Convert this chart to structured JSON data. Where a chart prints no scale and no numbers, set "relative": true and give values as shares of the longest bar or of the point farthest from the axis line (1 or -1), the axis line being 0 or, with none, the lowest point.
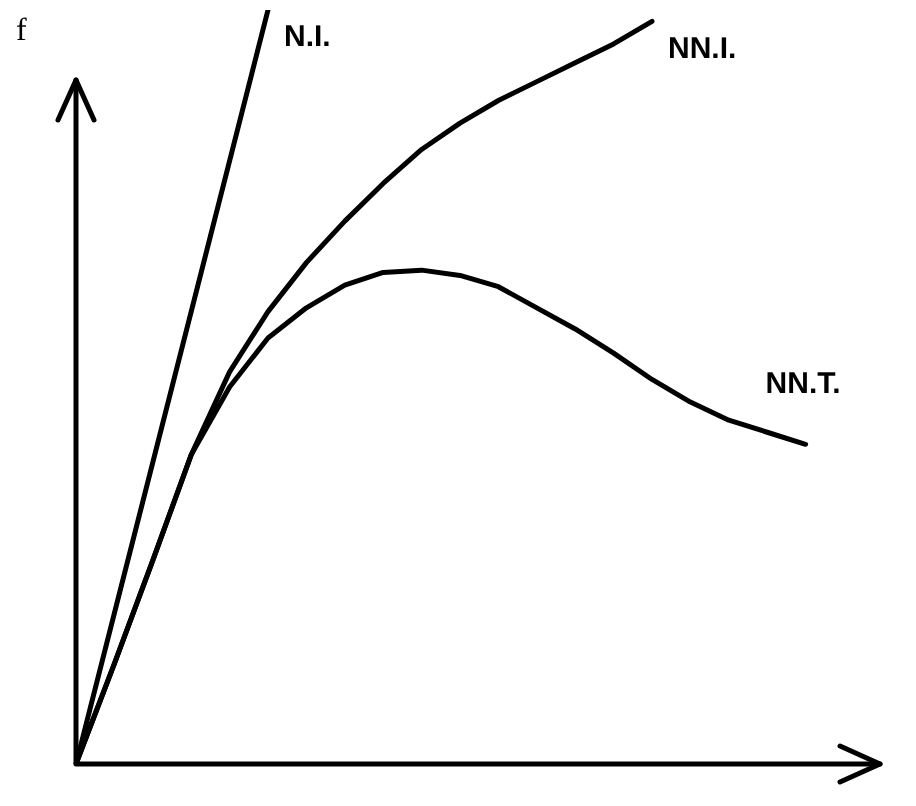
{
  "chart_data": {
    "type": "line",
    "ylabel": "f",
    "relative": true,
    "legend": false,
    "marker": "none",
    "line_style": "solid",
    "categories": [
      null,
      null,
      null,
      null,
      null,
      null,
      null,
      null,
      null,
      null,
      null,
      null,
      null,
      null,
      null,
      null,
      null,
      null,
      null,
      null,
      null
    ],
    "series": [
      {
        "name": "N.I.",
        "color": "#000000",
        "values": [
          0,
          0.2,
          0.4,
          0.6,
          0.8,
          1,
          null,
          null,
          null,
          null,
          null,
          null,
          null,
          null,
          null,
          null,
          null,
          null,
          null,
          null,
          null
        ]
      },
      {
        "name": "NN.I.",
        "color": "#000000",
        "values": [
          0,
          0.133,
          0.27,
          0.41,
          0.52,
          0.6,
          0.665,
          0.72,
          0.77,
          0.815,
          0.85,
          0.88,
          0.905,
          0.93,
          0.955,
          0.985,
          null,
          null,
          null,
          null,
          null
        ]
      },
      {
        "name": "NN.T.",
        "color": "#000000",
        "values": [
          0,
          0.133,
          0.27,
          0.41,
          0.5,
          0.565,
          0.605,
          0.635,
          0.652,
          0.655,
          0.648,
          0.633,
          0.605,
          0.577,
          0.545,
          0.51,
          0.48,
          0.456,
          0.44,
          0.424,
          null
        ]
      }
    ]
  }
}
